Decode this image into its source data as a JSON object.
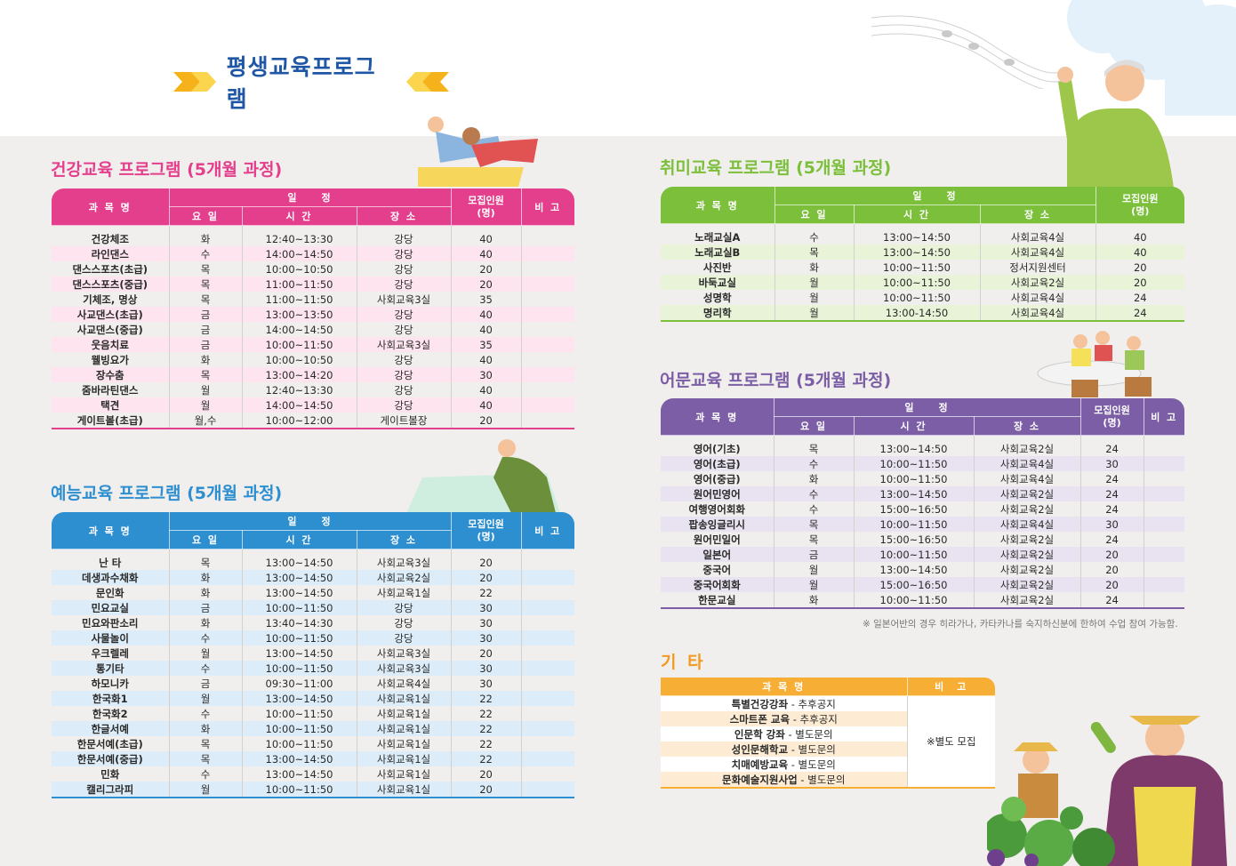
{
  "page_title": "평생교육프로그램",
  "header": {
    "subject": "과 목 명",
    "schedule": "일　　정",
    "day": "요 일",
    "time": "시 간",
    "place": "장 소",
    "capacity": "모집인원\n(명)",
    "note": "비 고"
  },
  "colors": {
    "health": "#e43f8c",
    "arts": "#2e8fd0",
    "hobby": "#7bbf3a",
    "lang": "#7c5ea6",
    "etc": "#f7ae35"
  },
  "health": {
    "title": "건강교육 프로그램 (5개월 과정)",
    "rows": [
      [
        "건강체조",
        "화",
        "12:40~13:30",
        "강당",
        "40"
      ],
      [
        "라인댄스",
        "수",
        "14:00~14:50",
        "강당",
        "40"
      ],
      [
        "댄스스포츠(초급)",
        "목",
        "10:00~10:50",
        "강당",
        "20"
      ],
      [
        "댄스스포츠(중급)",
        "목",
        "11:00~11:50",
        "강당",
        "20"
      ],
      [
        "기체조, 명상",
        "목",
        "11:00~11:50",
        "사회교육3실",
        "35"
      ],
      [
        "사교댄스(초급)",
        "금",
        "13:00~13:50",
        "강당",
        "40"
      ],
      [
        "사교댄스(중급)",
        "금",
        "14:00~14:50",
        "강당",
        "40"
      ],
      [
        "웃음치료",
        "금",
        "10:00~11:50",
        "사회교육3실",
        "35"
      ],
      [
        "웰빙요가",
        "화",
        "10:00~10:50",
        "강당",
        "40"
      ],
      [
        "장수춤",
        "목",
        "13:00~14:20",
        "강당",
        "30"
      ],
      [
        "줌바라틴댄스",
        "월",
        "12:40~13:30",
        "강당",
        "40"
      ],
      [
        "택견",
        "월",
        "14:00~14:50",
        "강당",
        "40"
      ],
      [
        "게이트볼(초급)",
        "월,수",
        "10:00~12:00",
        "게이트볼장",
        "20"
      ]
    ]
  },
  "arts": {
    "title": "예능교육 프로그램 (5개월 과정)",
    "rows": [
      [
        "난 타",
        "목",
        "13:00~14:50",
        "사회교육3실",
        "20"
      ],
      [
        "데생과수채화",
        "화",
        "13:00~14:50",
        "사회교육2실",
        "20"
      ],
      [
        "문인화",
        "화",
        "13:00~14:50",
        "사회교육1실",
        "22"
      ],
      [
        "민요교실",
        "금",
        "10:00~11:50",
        "강당",
        "30"
      ],
      [
        "민요와판소리",
        "화",
        "13:40~14:30",
        "강당",
        "30"
      ],
      [
        "사물놀이",
        "수",
        "10:00~11:50",
        "강당",
        "30"
      ],
      [
        "우크렐레",
        "월",
        "13:00~14:50",
        "사회교육3실",
        "20"
      ],
      [
        "통기타",
        "수",
        "10:00~11:50",
        "사회교육3실",
        "30"
      ],
      [
        "하모니카",
        "금",
        "09:30~11:00",
        "사회교육4실",
        "30"
      ],
      [
        "한국화1",
        "월",
        "13:00~14:50",
        "사회교육1실",
        "22"
      ],
      [
        "한국화2",
        "수",
        "10:00~11:50",
        "사회교육1실",
        "22"
      ],
      [
        "한글서예",
        "화",
        "10:00~11:50",
        "사회교육1실",
        "22"
      ],
      [
        "한문서예(초급)",
        "목",
        "10:00~11:50",
        "사회교육1실",
        "22"
      ],
      [
        "한문서예(중급)",
        "목",
        "13:00~14:50",
        "사회교육1실",
        "22"
      ],
      [
        "민화",
        "수",
        "13:00~14:50",
        "사회교육1실",
        "20"
      ],
      [
        "캘리그라피",
        "월",
        "10:00~11:50",
        "사회교육1실",
        "20"
      ]
    ]
  },
  "hobby": {
    "title": "취미교육 프로그램 (5개월 과정)",
    "rows": [
      [
        "노래교실A",
        "수",
        "13:00~14:50",
        "사회교육4실",
        "40"
      ],
      [
        "노래교실B",
        "목",
        "13:00~14:50",
        "사회교육4실",
        "40"
      ],
      [
        "사진반",
        "화",
        "10:00~11:50",
        "정서지원센터",
        "20"
      ],
      [
        "바둑교실",
        "월",
        "10:00~11:50",
        "사회교육2실",
        "20"
      ],
      [
        "성명학",
        "월",
        "10:00~11:50",
        "사회교육4실",
        "24"
      ],
      [
        "명리학",
        "월",
        "13:00-14:50",
        "사회교육4실",
        "24"
      ]
    ]
  },
  "lang": {
    "title": "어문교육 프로그램 (5개월 과정)",
    "rows": [
      [
        "영어(기초)",
        "목",
        "13:00~14:50",
        "사회교육2실",
        "24"
      ],
      [
        "영어(초급)",
        "수",
        "10:00~11:50",
        "사회교육4실",
        "30"
      ],
      [
        "영어(중급)",
        "화",
        "10:00~11:50",
        "사회교육4실",
        "24"
      ],
      [
        "원어민영어",
        "수",
        "13:00~14:50",
        "사회교육2실",
        "24"
      ],
      [
        "여행영어회화",
        "수",
        "15:00~16:50",
        "사회교육2실",
        "24"
      ],
      [
        "팝송잉글리시",
        "목",
        "10:00~11:50",
        "사회교육4실",
        "30"
      ],
      [
        "원어민일어",
        "목",
        "15:00~16:50",
        "사회교육2실",
        "24"
      ],
      [
        "일본어",
        "금",
        "10:00~11:50",
        "사회교육2실",
        "20"
      ],
      [
        "중국어",
        "월",
        "13:00~14:50",
        "사회교육2실",
        "20"
      ],
      [
        "중국어회화",
        "월",
        "15:00~16:50",
        "사회교육2실",
        "20"
      ],
      [
        "한문교실",
        "화",
        "10:00~11:50",
        "사회교육2실",
        "24"
      ]
    ],
    "note": "※ 일본어반의 경우 히라가나, 카타카나를 숙지하신분에 한하여 수업 참여 가능함."
  },
  "etc": {
    "title": "기 타",
    "subject": "과 목 명",
    "note_header": "비　고",
    "note_value": "※별도 모집",
    "rows": [
      {
        "name": "특별건강강좌",
        "detail": " - 추후공지"
      },
      {
        "name": "스마트폰 교육",
        "detail": " - 추후공지"
      },
      {
        "name": "인문학 강좌",
        "detail": " - 별도문의"
      },
      {
        "name": "성인문해학교",
        "detail": " - 별도문의"
      },
      {
        "name": "치매예방교육",
        "detail": " - 별도문의"
      },
      {
        "name": "문화예술지원사업",
        "detail": " - 별도문의"
      }
    ]
  }
}
